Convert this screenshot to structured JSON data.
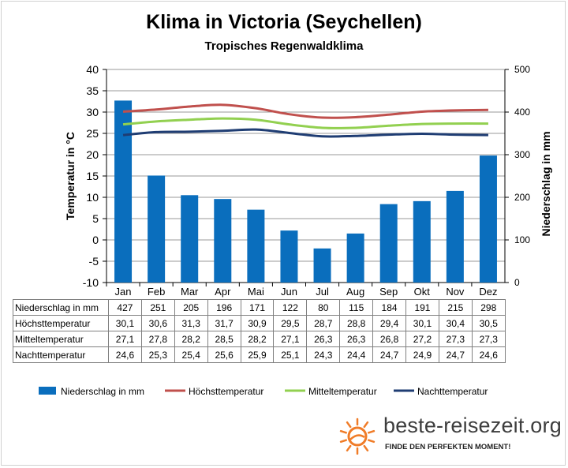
{
  "title": "Klima in Victoria (Seychellen)",
  "subtitle": "Tropisches Regenwaldklima",
  "chart_data": {
    "type": "bar+line",
    "categories": [
      "Jan",
      "Feb",
      "Mar",
      "Apr",
      "Mai",
      "Jun",
      "Jul",
      "Aug",
      "Sep",
      "Okt",
      "Nov",
      "Dez"
    ],
    "y_left": {
      "label": "Temperatur in °C",
      "lim": [
        -10,
        40
      ],
      "ticks": [
        -10,
        -5,
        0,
        5,
        10,
        15,
        20,
        25,
        30,
        35,
        40
      ]
    },
    "y_right": {
      "label": "Niederschlag in mm",
      "lim": [
        0,
        500
      ],
      "ticks": [
        0,
        100,
        200,
        300,
        400,
        500
      ]
    },
    "bars": {
      "name": "Niederschlag in mm",
      "axis": "right",
      "color": "#0a6ebd",
      "values": [
        427,
        251,
        205,
        196,
        171,
        122,
        80,
        115,
        184,
        191,
        215,
        298
      ]
    },
    "lines": [
      {
        "name": "Höchsttemperatur",
        "axis": "left",
        "color": "#c0504d",
        "values": [
          30.1,
          30.6,
          31.3,
          31.7,
          30.9,
          29.5,
          28.7,
          28.8,
          29.4,
          30.1,
          30.4,
          30.5
        ]
      },
      {
        "name": "Mitteltemperatur",
        "axis": "left",
        "color": "#92d050",
        "values": [
          27.1,
          27.8,
          28.2,
          28.5,
          28.2,
          27.1,
          26.3,
          26.3,
          26.8,
          27.2,
          27.3,
          27.3
        ]
      },
      {
        "name": "Nachttemperatur",
        "axis": "left",
        "color": "#1f3d73",
        "values": [
          24.6,
          25.3,
          25.4,
          25.6,
          25.9,
          25.1,
          24.3,
          24.4,
          24.7,
          24.9,
          24.7,
          24.6
        ]
      }
    ],
    "legend": "bottom"
  },
  "table": {
    "rows": [
      {
        "label": "Niederschlag in mm",
        "values": [
          "427",
          "251",
          "205",
          "196",
          "171",
          "122",
          "80",
          "115",
          "184",
          "191",
          "215",
          "298"
        ]
      },
      {
        "label": "Höchsttemperatur",
        "values": [
          "30,1",
          "30,6",
          "31,3",
          "31,7",
          "30,9",
          "29,5",
          "28,7",
          "28,8",
          "29,4",
          "30,1",
          "30,4",
          "30,5"
        ]
      },
      {
        "label": "Mitteltemperatur",
        "values": [
          "27,1",
          "27,8",
          "28,2",
          "28,5",
          "28,2",
          "27,1",
          "26,3",
          "26,3",
          "26,8",
          "27,2",
          "27,3",
          "27,3"
        ]
      },
      {
        "label": "Nachttemperatur",
        "values": [
          "24,6",
          "25,3",
          "25,4",
          "25,6",
          "25,9",
          "25,1",
          "24,3",
          "24,4",
          "24,7",
          "24,9",
          "24,7",
          "24,6"
        ]
      }
    ]
  },
  "logo": {
    "text": "beste-reisezeit.org",
    "tagline": "FINDE DEN PERFEKTEN MOMENT!",
    "sun_color": "#f07c28",
    "icon": "sun-icon"
  }
}
